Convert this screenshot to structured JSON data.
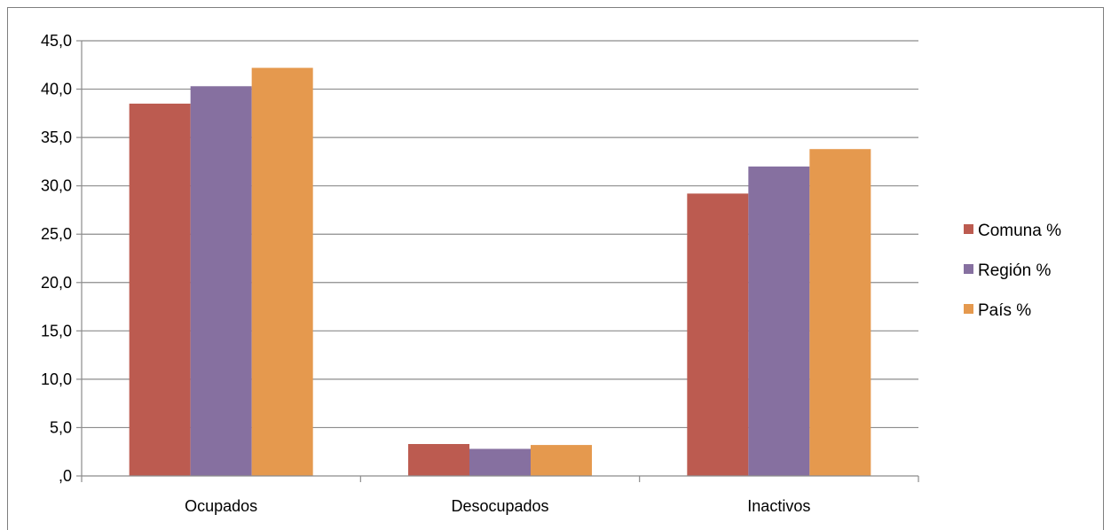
{
  "chart_data": {
    "type": "bar",
    "categories": [
      "Ocupados",
      "Desocupados",
      "Inactivos"
    ],
    "series": [
      {
        "name": "Comuna %",
        "color": "#bc5b50",
        "values": [
          38.5,
          3.3,
          29.2
        ]
      },
      {
        "name": "Región %",
        "color": "#8670a0",
        "values": [
          40.3,
          2.8,
          32.0
        ]
      },
      {
        "name": "País %",
        "color": "#e5994e",
        "values": [
          42.2,
          3.2,
          33.8
        ]
      }
    ],
    "y_ticks": [
      ",0",
      "5,0",
      "10,0",
      "15,0",
      "20,0",
      "25,0",
      "30,0",
      "35,0",
      "40,0",
      "45,0"
    ],
    "ylim": [
      0,
      45
    ],
    "grid": true,
    "legend_position": "right"
  }
}
